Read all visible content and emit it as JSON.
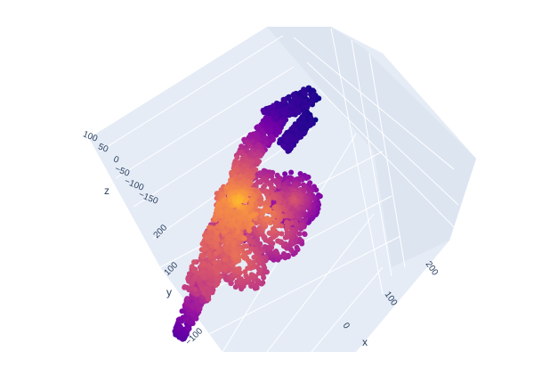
{
  "chart_data": {
    "type": "scatter3d",
    "title": "",
    "colorscale": "plasma",
    "colorscale_stops": [
      "#0d0887",
      "#46039f",
      "#7201a8",
      "#9c179e",
      "#bd3786",
      "#d8576b",
      "#ed7953",
      "#fb9f3a",
      "#fdca26",
      "#f0f921"
    ],
    "scene_background": "#e5ecf6",
    "grid_color": "#ffffff",
    "axes": {
      "x": {
        "title": "x",
        "ticks": [
          0,
          100,
          200
        ],
        "tick_labels": [
          "0",
          "100",
          "200"
        ]
      },
      "y": {
        "title": "y",
        "ticks": [
          -100,
          100,
          200
        ],
        "tick_labels": [
          "−100",
          "100",
          "200"
        ]
      },
      "z": {
        "title": "z",
        "ticks": [
          -150,
          -100,
          -50,
          0,
          50,
          100
        ],
        "tick_labels": [
          "−150",
          "−100",
          "−50",
          "0",
          "50",
          "100"
        ]
      }
    },
    "series": [
      {
        "marker_size": 6
      }
    ]
  }
}
